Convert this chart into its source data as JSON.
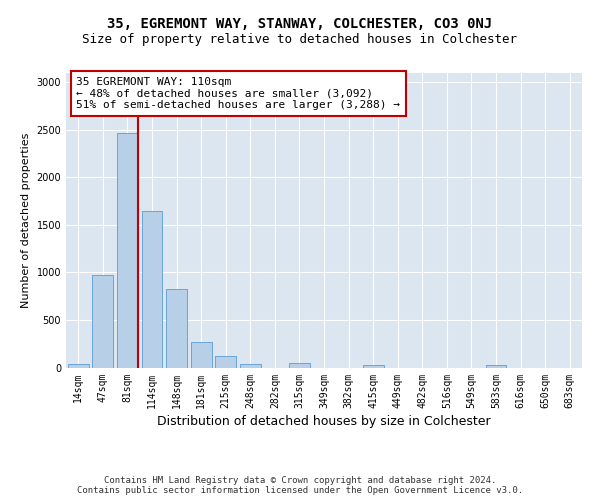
{
  "title": "35, EGREMONT WAY, STANWAY, COLCHESTER, CO3 0NJ",
  "subtitle": "Size of property relative to detached houses in Colchester",
  "xlabel": "Distribution of detached houses by size in Colchester",
  "ylabel": "Number of detached properties",
  "bar_labels": [
    "14sqm",
    "47sqm",
    "81sqm",
    "114sqm",
    "148sqm",
    "181sqm",
    "215sqm",
    "248sqm",
    "282sqm",
    "315sqm",
    "349sqm",
    "382sqm",
    "415sqm",
    "449sqm",
    "482sqm",
    "516sqm",
    "549sqm",
    "583sqm",
    "616sqm",
    "650sqm",
    "683sqm"
  ],
  "bar_values": [
    40,
    975,
    2460,
    1640,
    830,
    270,
    120,
    40,
    0,
    50,
    0,
    0,
    25,
    0,
    0,
    0,
    0,
    25,
    0,
    0,
    0
  ],
  "bar_color": "#b8cfe8",
  "bar_edge_color": "#5b9bd5",
  "bg_color": "#dce6f1",
  "grid_color": "#ffffff",
  "vline_color": "#c00000",
  "vline_x_index": 2.42,
  "annotation_text": "35 EGREMONT WAY: 110sqm\n← 48% of detached houses are smaller (3,092)\n51% of semi-detached houses are larger (3,288) →",
  "annotation_box_color": "#c00000",
  "ylim": [
    0,
    3100
  ],
  "yticks": [
    0,
    500,
    1000,
    1500,
    2000,
    2500,
    3000
  ],
  "footer": "Contains HM Land Registry data © Crown copyright and database right 2024.\nContains public sector information licensed under the Open Government Licence v3.0.",
  "title_fontsize": 10,
  "subtitle_fontsize": 9,
  "xlabel_fontsize": 9,
  "ylabel_fontsize": 8,
  "tick_fontsize": 7,
  "annotation_fontsize": 8,
  "footer_fontsize": 6.5
}
